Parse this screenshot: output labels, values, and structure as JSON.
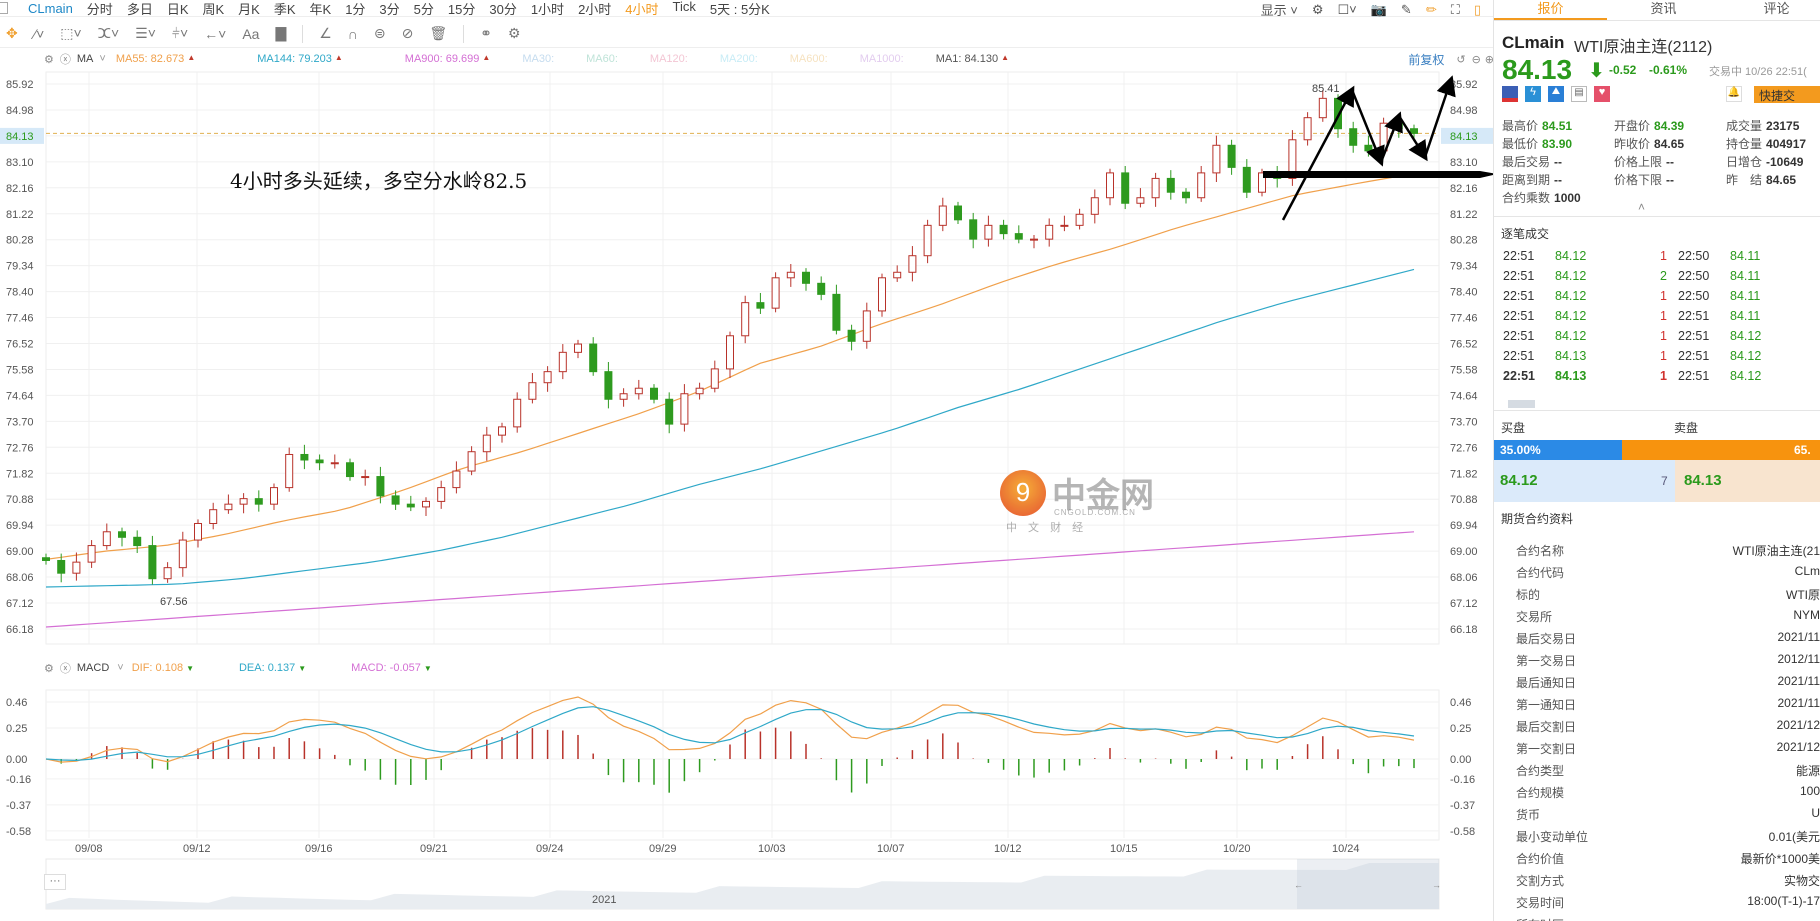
{
  "toolbar": {
    "symbol": "CLmain",
    "periods": [
      "分时",
      "多日",
      "日K",
      "周K",
      "月K",
      "季K",
      "年K",
      "1分",
      "3分",
      "5分",
      "15分",
      "30分",
      "1小时",
      "2小时",
      "4小时",
      "Tick",
      "5天 : 5分K"
    ],
    "active_period": "4小时",
    "display_label": "显示"
  },
  "drawing_tools": {
    "text_tool": "Aa"
  },
  "ma_legend": {
    "name": "MA",
    "items": [
      {
        "label": "MA55: 82.673",
        "color": "#f0a04b"
      },
      {
        "label": "MA144: 79.203",
        "color": "#2fa8c8"
      },
      {
        "label": "MA900: 69.699",
        "color": "#d46fd4"
      },
      {
        "label": "MA30:",
        "color": "#c5dcef"
      },
      {
        "label": "MA60:",
        "color": "#bfe3d8"
      },
      {
        "label": "MA120:",
        "color": "#f3c6d4"
      },
      {
        "label": "MA200:",
        "color": "#c8ecf6"
      },
      {
        "label": "MA600:",
        "color": "#f6e2c0"
      },
      {
        "label": "MA1000:",
        "color": "#e3cdef"
      },
      {
        "label": "MA1: 84.130",
        "color": "#555555"
      }
    ],
    "adjust_label": "前复权"
  },
  "annotation": {
    "text": "4小时多头延续，多空分水岭82.5",
    "high_label": "85.41",
    "low_label": "67.56"
  },
  "macd_legend": {
    "name": "MACD",
    "dif": "DIF: 0.108",
    "dea": "DEA: 0.137",
    "macd": "MACD: -0.057"
  },
  "navigator": {
    "year": "2021",
    "more": "···"
  },
  "chart_data": {
    "type": "candlestick",
    "price_ticks": [
      "85.92",
      "84.98",
      "84.13",
      "83.10",
      "82.16",
      "81.22",
      "80.28",
      "79.34",
      "78.40",
      "77.46",
      "76.52",
      "75.58",
      "74.64",
      "73.70",
      "72.76",
      "71.82",
      "70.88",
      "69.94",
      "69.00",
      "68.06",
      "67.12",
      "66.18"
    ],
    "ylim": [
      66.18,
      85.92
    ],
    "current_price": 84.13,
    "x_labels": [
      "09/08",
      "09/12",
      "09/16",
      "09/21",
      "09/24",
      "09/29",
      "10/03",
      "10/07",
      "10/12",
      "10/15",
      "10/20",
      "10/24"
    ],
    "closes": [
      68.66,
      68.2,
      68.6,
      69.2,
      69.7,
      69.5,
      69.2,
      68.0,
      68.4,
      69.4,
      70.0,
      70.5,
      70.7,
      70.9,
      70.7,
      71.3,
      72.5,
      72.3,
      72.2,
      72.2,
      71.7,
      71.7,
      71.0,
      70.7,
      70.6,
      70.8,
      71.3,
      71.9,
      72.6,
      73.2,
      73.5,
      74.5,
      75.1,
      75.5,
      76.2,
      76.5,
      75.5,
      74.5,
      74.7,
      74.9,
      74.5,
      73.6,
      74.7,
      74.9,
      75.6,
      76.8,
      78.0,
      77.8,
      78.9,
      79.1,
      78.7,
      78.3,
      77.0,
      76.6,
      77.7,
      78.9,
      79.1,
      79.7,
      80.8,
      81.5,
      81.0,
      80.3,
      80.8,
      80.5,
      80.3,
      80.3,
      80.8,
      80.8,
      81.2,
      81.8,
      82.7,
      81.6,
      81.8,
      82.5,
      82.0,
      81.8,
      82.7,
      83.7,
      82.9,
      82.0,
      82.7,
      82.5,
      83.9,
      84.7,
      85.4,
      84.3,
      83.7,
      83.5,
      84.5,
      84.3,
      84.13
    ],
    "ma55": [
      68.7,
      69.0,
      69.2,
      69.6,
      70.1,
      70.5,
      71.2,
      72.0,
      72.6,
      73.3,
      74.0,
      74.8,
      75.8,
      76.4,
      77.2,
      77.9,
      78.7,
      79.4,
      80.0,
      80.7,
      81.3,
      81.9,
      82.3,
      82.673
    ],
    "ma144": [
      67.7,
      67.75,
      67.8,
      68.0,
      68.3,
      68.6,
      69.0,
      69.5,
      70.1,
      70.7,
      71.4,
      72.0,
      72.7,
      73.4,
      74.2,
      74.9,
      75.7,
      76.5,
      77.3,
      78.0,
      78.6,
      79.203
    ],
    "ma900": [
      66.25,
      69.699
    ],
    "macd_ticks": [
      "0.46",
      "0.25",
      "0.00",
      "-0.16",
      "-0.37",
      "-0.58"
    ],
    "macd_ylim": [
      -0.58,
      0.46
    ]
  },
  "panel": {
    "tabs": [
      "报价",
      "资讯",
      "评论"
    ],
    "symbol": "CLmain",
    "name": "WTI原油主连(2112)",
    "price": "84.13",
    "change": "-0.52",
    "change_pct": "-0.61%",
    "status": "交易中 10/26 22:51(",
    "quick_trade": "快捷交",
    "stats": [
      [
        "最高价",
        "84.51",
        "g"
      ],
      [
        "开盘价",
        "84.39",
        "g"
      ],
      [
        "成交量",
        "23175",
        ""
      ],
      [
        "最低价",
        "83.90",
        "g"
      ],
      [
        "昨收价",
        "84.65",
        ""
      ],
      [
        "持仓量",
        "404917",
        ""
      ],
      [
        "最后交易",
        "--",
        ""
      ],
      [
        "价格上限",
        "--",
        ""
      ],
      [
        "日增仓",
        "-10649",
        ""
      ],
      [
        "距离到期",
        "--",
        ""
      ],
      [
        "价格下限",
        "--",
        ""
      ],
      [
        "昨　结",
        "84.65",
        ""
      ],
      [
        "合约乘数",
        "1000",
        ""
      ]
    ],
    "trades_title": "逐笔成交",
    "trades": [
      [
        "22:51",
        "84.12",
        "1",
        "22:50",
        "84.11"
      ],
      [
        "22:51",
        "84.12",
        "2",
        "22:50",
        "84.11"
      ],
      [
        "22:51",
        "84.12",
        "1",
        "22:50",
        "84.11"
      ],
      [
        "22:51",
        "84.12",
        "1",
        "22:51",
        "84.11"
      ],
      [
        "22:51",
        "84.12",
        "1",
        "22:51",
        "84.12"
      ],
      [
        "22:51",
        "84.13",
        "1",
        "22:51",
        "84.12"
      ],
      [
        "22:51",
        "84.13",
        "1",
        "22:51",
        "84.12"
      ]
    ],
    "bid_label": "买盘",
    "ask_label": "卖盘",
    "bid_pct": "35.00%",
    "ask_pct": "65.",
    "bid_ratio": 0.35,
    "bid": "84.12",
    "spread_qty": "7",
    "ask": "84.13",
    "contract_title": "期货合约资料",
    "contract": [
      [
        "合约名称",
        "WTI原油主连(21"
      ],
      [
        "合约代码",
        "CLm"
      ],
      [
        "标的",
        "WTI原"
      ],
      [
        "交易所",
        "NYM"
      ],
      [
        "最后交易日",
        "2021/11"
      ],
      [
        "第一交易日",
        "2012/11"
      ],
      [
        "最后通知日",
        "2021/11"
      ],
      [
        "第一通知日",
        "2021/11"
      ],
      [
        "最后交割日",
        "2021/12"
      ],
      [
        "第一交割日",
        "2021/12"
      ],
      [
        "合约类型",
        "能源"
      ],
      [
        "合约规模",
        "100"
      ],
      [
        "货币",
        "U"
      ],
      [
        "最小变动单位",
        "0.01(美元"
      ],
      [
        "合约价值",
        "最新价*1000美"
      ],
      [
        "交割方式",
        "实物交"
      ],
      [
        "交易时间",
        "18:00(T-1)-17"
      ],
      [
        "所在时区",
        ""
      ]
    ],
    "watermark": {
      "brand": "中金网",
      "domain": "CNGOLD.COM.CN",
      "slogan": "中 文 财 经"
    }
  }
}
